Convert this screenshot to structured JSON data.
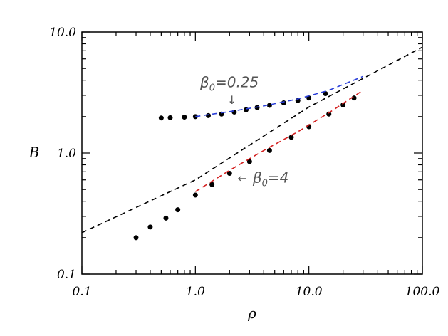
{
  "chart_data": {
    "type": "scatter",
    "title": "",
    "xlabel": "ρ",
    "ylabel": "B",
    "xscale": "log",
    "yscale": "log",
    "xlim": [
      0.1,
      100.0
    ],
    "ylim": [
      0.1,
      10.0
    ],
    "x_tick_labels": [
      "0.1",
      "1.0",
      "10.0",
      "100.0"
    ],
    "y_tick_labels": [
      "0.1",
      "1.0",
      "10.0"
    ],
    "grid": false,
    "colors": {
      "blue_fit": "#2a3fd8",
      "red_fit": "#d42020",
      "points": "#000000",
      "reference": "#000000"
    },
    "annotations": [
      {
        "base": "β",
        "sub": "0",
        "value": "=0.25",
        "arrow": "↓"
      },
      {
        "base": "β",
        "sub": "0",
        "value": "=4",
        "arrow": "←"
      }
    ],
    "series": [
      {
        "style": "points",
        "color": "#000000",
        "x": [
          0.5,
          0.6,
          0.8,
          1.0,
          1.3,
          1.7,
          2.2,
          2.8,
          3.5,
          4.5,
          6.0,
          8.0,
          10.0,
          14.0
        ],
        "y": [
          1.95,
          1.96,
          1.98,
          2.0,
          2.04,
          2.1,
          2.18,
          2.28,
          2.38,
          2.48,
          2.6,
          2.72,
          2.85,
          3.1
        ]
      },
      {
        "style": "dashed",
        "color": "#2a3fd8",
        "x": [
          1.0,
          2.0,
          4.0,
          8.0,
          15.0,
          30.0
        ],
        "y": [
          2.0,
          2.2,
          2.45,
          2.8,
          3.3,
          4.3
        ]
      },
      {
        "style": "points",
        "color": "#000000",
        "x": [
          0.3,
          0.4,
          0.55,
          0.7,
          1.0,
          1.4,
          2.0,
          3.0,
          4.5,
          7.0,
          10.0,
          15.0,
          20.0,
          25.0
        ],
        "y": [
          0.2,
          0.245,
          0.29,
          0.34,
          0.45,
          0.55,
          0.68,
          0.85,
          1.05,
          1.35,
          1.65,
          2.1,
          2.5,
          2.85
        ]
      },
      {
        "style": "dashed",
        "color": "#d42020",
        "x": [
          1.0,
          2.0,
          4.0,
          8.0,
          15.0,
          30.0
        ],
        "y": [
          0.48,
          0.72,
          1.05,
          1.5,
          2.15,
          3.3
        ]
      },
      {
        "style": "dashed",
        "color": "#000000",
        "x": [
          0.1,
          1.0,
          10.0,
          100.0
        ],
        "y": [
          0.22,
          0.6,
          2.4,
          7.5
        ]
      }
    ]
  }
}
